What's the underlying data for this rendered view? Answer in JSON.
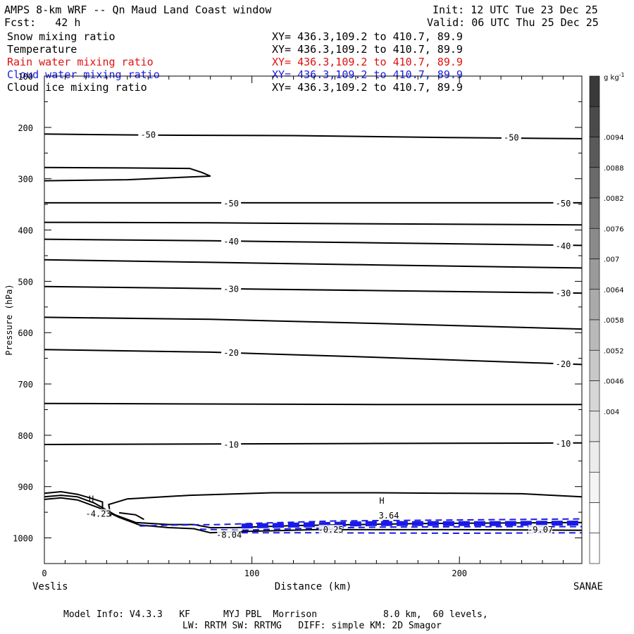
{
  "header": {
    "title": "AMPS 8-km WRF -- Qn Maud Land Coast window",
    "forecast": "Fcst:   42 h",
    "init": "Init: 12 UTC Tue 23 Dec 25",
    "valid": "Valid: 06 UTC Thu 25 Dec 25"
  },
  "fields": [
    {
      "name": "Snow mixing ratio",
      "xy": "XY= 436.3,109.2 to 410.7, 89.9",
      "color": "#000000"
    },
    {
      "name": "Temperature",
      "xy": "XY= 436.3,109.2 to 410.7, 89.9",
      "color": "#000000"
    },
    {
      "name": "Rain water mixing ratio",
      "xy": "XY= 436.3,109.2 to 410.7, 89.9",
      "color": "#e01010"
    },
    {
      "name": "Cloud water mixing ratio",
      "xy": "XY= 436.3,109.2 to 410.7, 89.9",
      "color": "#1a1ae6"
    },
    {
      "name": "Cloud ice mixing ratio",
      "xy": "XY= 436.3,109.2 to 410.7, 89.9",
      "color": "#000000"
    }
  ],
  "footer": {
    "line1": "Model Info: V4.3.3   KF      MYJ PBL  Morrison            8.0 km,  60 levels,",
    "line2": "LW: RRTM SW: RRTMG   DIFF: simple KM: 2D Smagor"
  },
  "chart_data": {
    "type": "contour",
    "ylabel": "Pressure (hPa)",
    "xlabel": "Distance (km)",
    "x_start_label": "Veslis",
    "x_end_label": "SANAE",
    "xlim": [
      0,
      259
    ],
    "ylim": [
      1050,
      100
    ],
    "xticks": [
      0,
      100,
      200
    ],
    "yticks": [
      100,
      200,
      300,
      400,
      500,
      600,
      700,
      800,
      900,
      1000
    ],
    "temperature_contours": [
      {
        "label": "-50",
        "points": [
          [
            0,
            213
          ],
          [
            50,
            215
          ],
          [
            120,
            216
          ],
          [
            200,
            220
          ],
          [
            259,
            222
          ]
        ],
        "labels_at": [
          [
            50,
            213
          ],
          [
            225,
            219
          ]
        ]
      },
      {
        "label": "",
        "points": [
          [
            0,
            304
          ],
          [
            40,
            302
          ],
          [
            80,
            295
          ],
          [
            76,
            288
          ],
          [
            70,
            280
          ],
          [
            40,
            279
          ],
          [
            0,
            278
          ]
        ],
        "labels_at": []
      },
      {
        "label": "-50",
        "points": [
          [
            0,
            347
          ],
          [
            80,
            347
          ],
          [
            150,
            347
          ],
          [
            259,
            347
          ]
        ],
        "labels_at": [
          [
            90,
            347
          ],
          [
            250,
            347
          ]
        ]
      },
      {
        "label": "",
        "points": [
          [
            0,
            385
          ],
          [
            80,
            386
          ],
          [
            160,
            388
          ],
          [
            259,
            390
          ]
        ],
        "labels_at": []
      },
      {
        "label": "-40",
        "points": [
          [
            0,
            418
          ],
          [
            80,
            421
          ],
          [
            160,
            425
          ],
          [
            259,
            430
          ]
        ],
        "labels_at": [
          [
            90,
            421
          ],
          [
            250,
            430
          ]
        ]
      },
      {
        "label": "",
        "points": [
          [
            0,
            458
          ],
          [
            80,
            463
          ],
          [
            160,
            468
          ],
          [
            259,
            474
          ]
        ],
        "labels_at": []
      },
      {
        "label": "-30",
        "points": [
          [
            0,
            510
          ],
          [
            80,
            514
          ],
          [
            160,
            518
          ],
          [
            259,
            523
          ]
        ],
        "labels_at": [
          [
            90,
            514
          ],
          [
            250,
            522
          ]
        ]
      },
      {
        "label": "",
        "points": [
          [
            0,
            570
          ],
          [
            80,
            574
          ],
          [
            160,
            582
          ],
          [
            259,
            593
          ]
        ],
        "labels_at": []
      },
      {
        "label": "-20",
        "points": [
          [
            0,
            633
          ],
          [
            80,
            638
          ],
          [
            160,
            648
          ],
          [
            259,
            662
          ]
        ],
        "labels_at": [
          [
            90,
            638
          ],
          [
            250,
            660
          ]
        ]
      },
      {
        "label": "",
        "points": [
          [
            0,
            738
          ],
          [
            80,
            739
          ],
          [
            160,
            740
          ],
          [
            259,
            740
          ]
        ],
        "labels_at": []
      },
      {
        "label": "-10",
        "points": [
          [
            0,
            818
          ],
          [
            80,
            817
          ],
          [
            160,
            816
          ],
          [
            259,
            815
          ]
        ],
        "labels_at": [
          [
            90,
            817
          ],
          [
            250,
            815
          ]
        ]
      },
      {
        "label": "",
        "points": [
          [
            32,
            958
          ],
          [
            31,
            935
          ],
          [
            40,
            924
          ],
          [
            70,
            917
          ],
          [
            110,
            912
          ],
          [
            160,
            912
          ],
          [
            230,
            914
          ],
          [
            259,
            920
          ]
        ],
        "labels_at": []
      },
      {
        "label": "",
        "points": [
          [
            0,
            913
          ],
          [
            8,
            910
          ],
          [
            16,
            915
          ],
          [
            22,
            922
          ],
          [
            28,
            930
          ],
          [
            28,
            945
          ]
        ],
        "labels_at": []
      },
      {
        "label": "",
        "points": [
          [
            0,
            920
          ],
          [
            8,
            917
          ],
          [
            16,
            920
          ],
          [
            24,
            932
          ],
          [
            34,
            955
          ],
          [
            44,
            970
          ],
          [
            60,
            974
          ],
          [
            72,
            974
          ],
          [
            80,
            980
          ],
          [
            92,
            980
          ],
          [
            120,
            976
          ],
          [
            180,
            972
          ],
          [
            259,
            970
          ]
        ],
        "labels_at": []
      },
      {
        "label": "",
        "points": [
          [
            0,
            925
          ],
          [
            8,
            922
          ],
          [
            16,
            926
          ],
          [
            26,
            941
          ],
          [
            36,
            960
          ],
          [
            46,
            975
          ],
          [
            60,
            980
          ],
          [
            72,
            982
          ],
          [
            80,
            990
          ],
          [
            92,
            988
          ],
          [
            130,
            984
          ],
          [
            200,
            984
          ],
          [
            259,
            985
          ]
        ],
        "labels_at": []
      },
      {
        "label": "",
        "points": [
          [
            36,
            951
          ],
          [
            44,
            955
          ],
          [
            48,
            964
          ]
        ],
        "labels_at": []
      }
    ],
    "extrema_labels": [
      {
        "symbol": "H",
        "value": "-4.23",
        "x": 26,
        "p": 952
      },
      {
        "symbol": "H",
        "value": "3.64",
        "x": 166,
        "p": 955
      },
      {
        "symbol": "",
        "value": "-8.04",
        "x": 89,
        "p": 993
      },
      {
        "symbol": "",
        "value": "-0.25",
        "x": 138,
        "p": 983
      },
      {
        "symbol": "",
        "value": "-9.07",
        "x": 239,
        "p": 983
      }
    ],
    "cloud_water_contours": [
      {
        "points": [
          [
            46,
            977
          ],
          [
            60,
            975
          ],
          [
            85,
            974
          ],
          [
            105,
            971
          ],
          [
            140,
            967
          ],
          [
            200,
            965
          ],
          [
            259,
            963
          ]
        ],
        "style": "dash",
        "width": 2
      },
      {
        "points": [
          [
            75,
            983
          ],
          [
            95,
            985
          ],
          [
            120,
            982
          ],
          [
            160,
            979
          ],
          [
            220,
            978
          ],
          [
            259,
            978
          ]
        ],
        "style": "dash",
        "width": 2
      },
      {
        "points": [
          [
            95,
            977
          ],
          [
            120,
            975
          ],
          [
            160,
            972
          ],
          [
            220,
            972
          ],
          [
            259,
            971
          ]
        ],
        "style": "dash",
        "width": 7
      },
      {
        "points": [
          [
            95,
            990
          ],
          [
            130,
            990
          ],
          [
            200,
            991
          ],
          [
            259,
            990
          ]
        ],
        "style": "dash",
        "width": 2
      }
    ],
    "colorbar": {
      "unit": "g kg",
      "unit_exp": "-1",
      "labels": [
        ".0094",
        ".0088",
        ".0082",
        ".0076",
        ".007",
        ".0064",
        ".0058",
        ".0052",
        ".0046",
        ".004"
      ],
      "colors": [
        "#3a3a3a",
        "#4a4a4a",
        "#5a5a5a",
        "#6a6a6a",
        "#7a7a7a",
        "#8a8a8a",
        "#9a9a9a",
        "#aaaaaa",
        "#b9b9b9",
        "#c8c8c8",
        "#d6d6d6",
        "#e2e2e2",
        "#ececec",
        "#f4f4f4",
        "#ffffff",
        "#ffffff"
      ]
    }
  }
}
